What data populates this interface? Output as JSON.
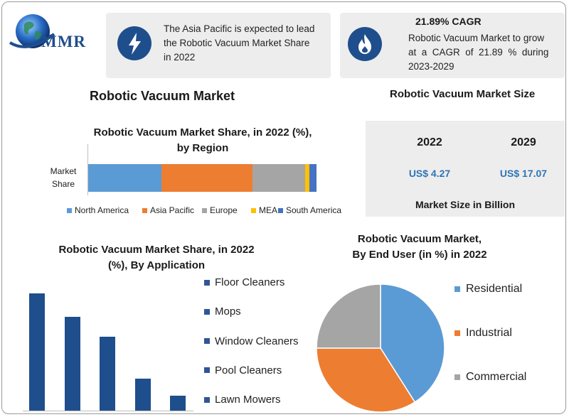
{
  "logo": {
    "text": "MMR"
  },
  "highlights": [
    {
      "icon": "lightning-icon",
      "lines": [
        "The Asia Pacific is expected to lead",
        "the Robotic Vacuum Market Share",
        "in 2022"
      ]
    },
    {
      "icon": "flame-icon",
      "title": "21.89% CAGR",
      "lines": [
        "Robotic Vacuum Market to grow",
        "at  a  CAGR  of  21.89  %  during",
        "2023-2029"
      ]
    }
  ],
  "main_title": "Robotic Vacuum Market",
  "size_section": {
    "title": "Robotic Vacuum Market Size",
    "years": [
      "2022",
      "2029"
    ],
    "values": [
      "US$ 4.27",
      "US$ 17.07"
    ],
    "footer": "Market Size in Billion"
  },
  "chart_data": [
    {
      "type": "bar",
      "orientation": "horizontal-stacked",
      "title": "Robotic Vacuum Market Share, in 2022 (%), by Region",
      "title_lines": [
        "Robotic Vacuum Market Share, in 2022 (%),",
        "by Region"
      ],
      "categories": [
        "Market Share"
      ],
      "category_lines": [
        "Market",
        "Share"
      ],
      "series": [
        {
          "name": "North America",
          "values": [
            32
          ],
          "color": "#5b9bd5"
        },
        {
          "name": "Asia Pacific",
          "values": [
            40
          ],
          "color": "#ed7d31"
        },
        {
          "name": "Europe",
          "values": [
            23
          ],
          "color": "#a5a5a5"
        },
        {
          "name": "MEA",
          "values": [
            2
          ],
          "color": "#ffc000"
        },
        {
          "name": "South America",
          "values": [
            3
          ],
          "color": "#4472c4"
        }
      ],
      "xlim": [
        0,
        100
      ],
      "legend_position": "bottom"
    },
    {
      "type": "bar",
      "title": "Robotic Vacuum Market Share, in 2022 (%), By Application",
      "title_lines": [
        "Robotic Vacuum Market Share, in 2022",
        "(%), By Application"
      ],
      "categories": [
        "Floor Cleaners",
        "Mops",
        "Window Cleaners",
        "Pool Cleaners",
        "Lawn Mowers"
      ],
      "values": [
        100,
        80,
        63,
        27,
        13
      ],
      "color": "#1f4e8c",
      "legend_color": "#2f5597",
      "ylim": [
        0,
        100
      ],
      "legend_position": "right"
    },
    {
      "type": "pie",
      "title": "Robotic Vacuum Market, By End User (in %) in 2022",
      "title_lines": [
        "Robotic Vacuum Market,",
        "By End User (in %) in 2022"
      ],
      "categories": [
        "Residential",
        "Industrial",
        "Commercial"
      ],
      "values": [
        41,
        34,
        25
      ],
      "colors": [
        "#5b9bd5",
        "#ed7d31",
        "#a5a5a5"
      ],
      "legend_position": "right"
    }
  ]
}
